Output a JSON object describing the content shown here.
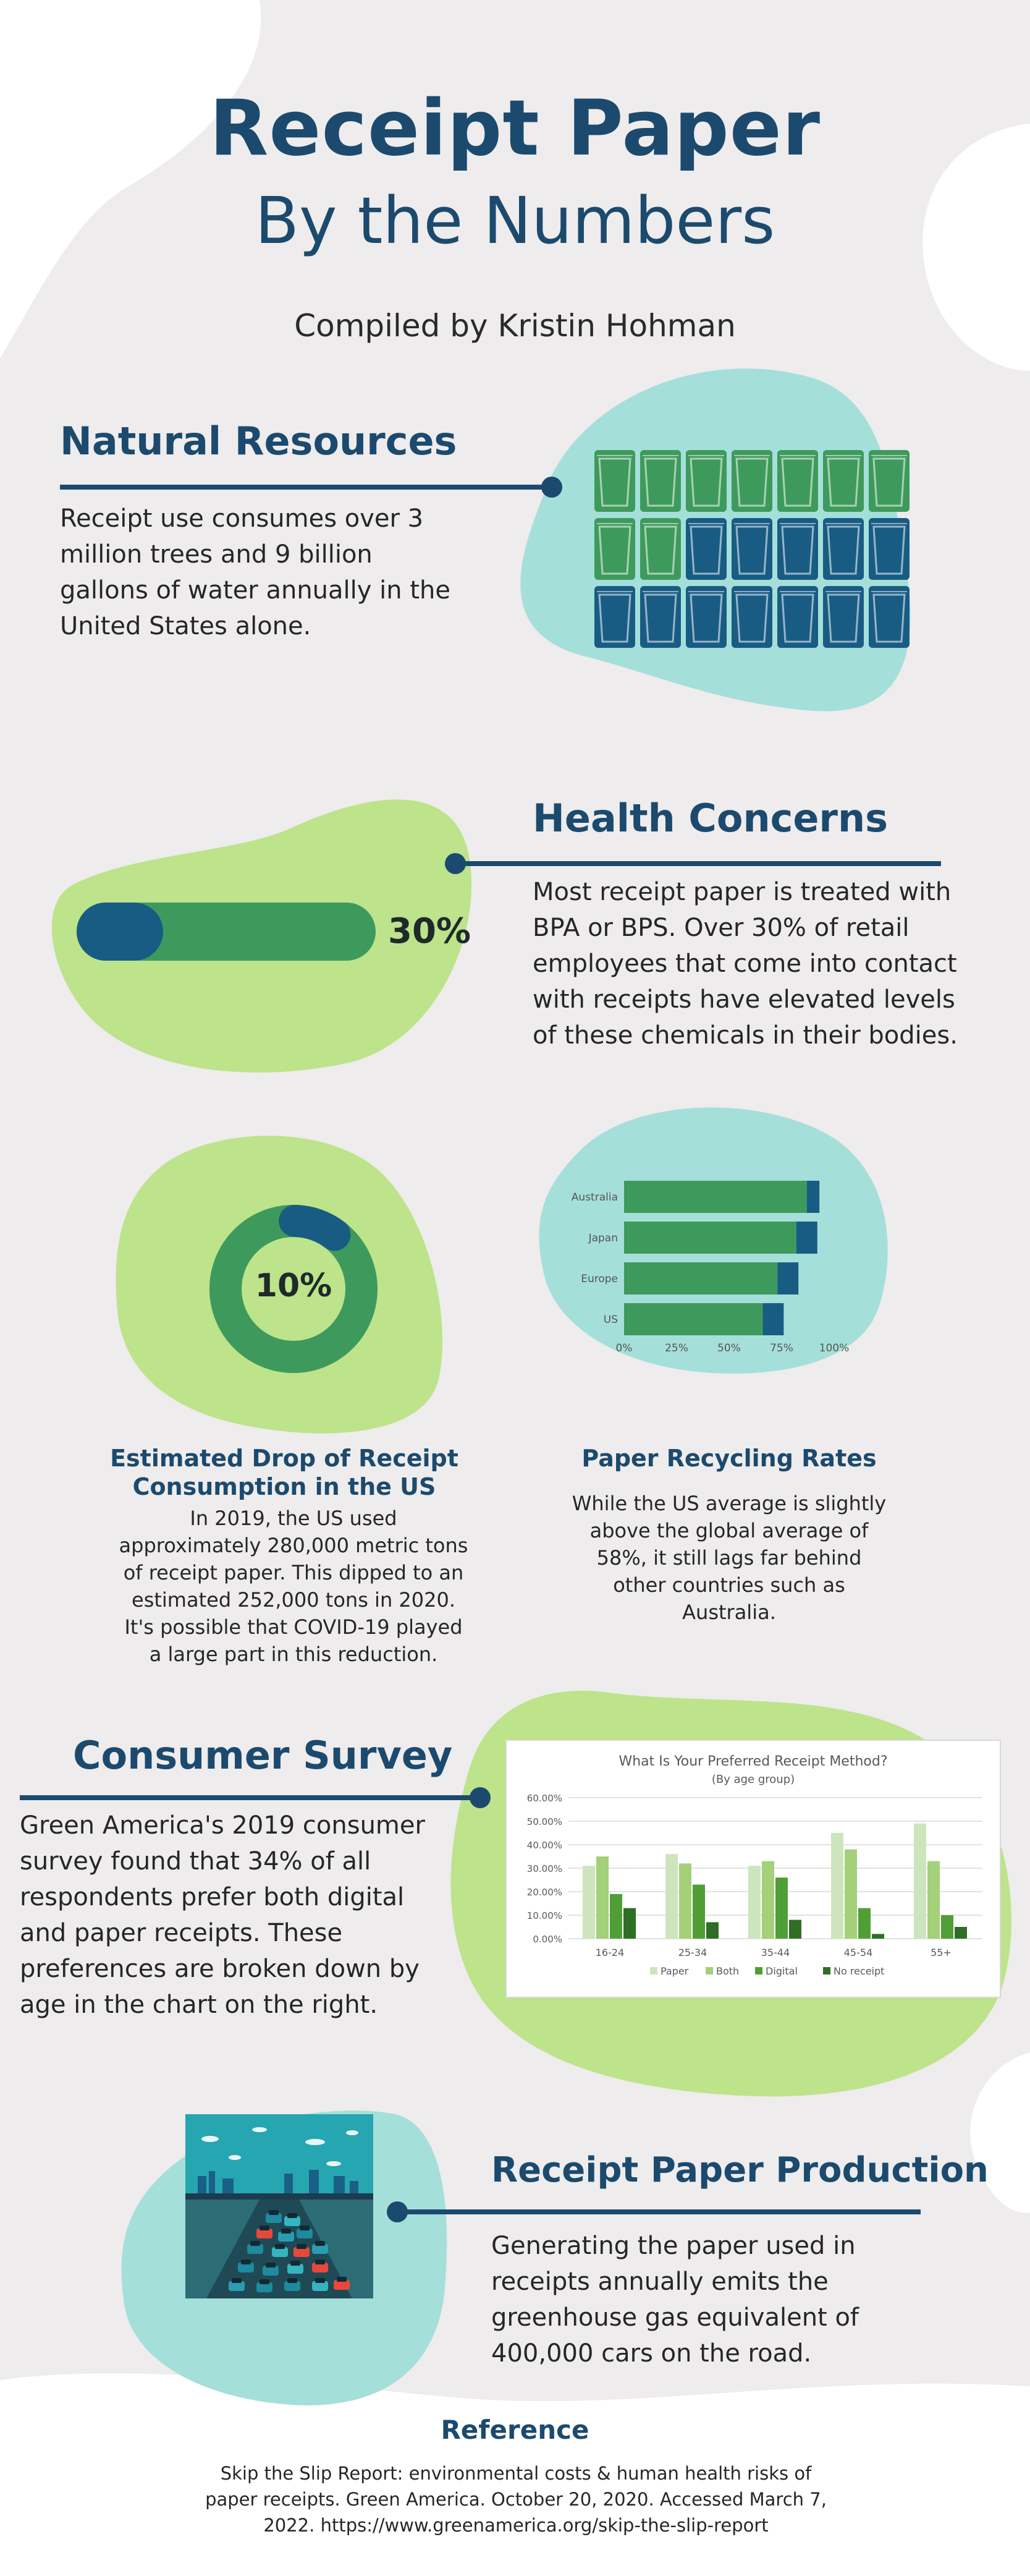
{
  "header": {
    "title": "Receipt Paper",
    "subtitle": "By the Numbers",
    "byline": "Compiled by Kristin Hohman"
  },
  "natural_resources": {
    "heading": "Natural Resources",
    "text": "Receipt use consumes over 3 million trees and 9 billion gallons of water annually in the United States alone.",
    "icon": "water-glass-icon",
    "glasses_total": 21,
    "glasses_green": 9,
    "colors": {
      "green": "#3e9a5c",
      "navy": "#185c84"
    }
  },
  "health": {
    "heading": "Health Concerns",
    "text": "Most receipt paper is treated with BPA or BPS. Over 30% of retail employees that come into contact with receipts have elevated levels of these chemicals in their bodies.",
    "percent_label": "30%",
    "percent_value": 30
  },
  "consumption": {
    "heading": "Estimated Drop of Receipt Consumption in the US",
    "text": "In 2019, the US used approximately 280,000 metric tons of receipt paper. This dipped to an estimated 252,000 tons in 2020. It's possible that COVID-19 played a large part in this reduction.",
    "percent_label": "10%",
    "percent_value": 10
  },
  "recycling": {
    "heading": "Paper Recycling Rates",
    "text": "While the US average is slightly above the global average of 58%, it still lags far behind other countries such as Australia."
  },
  "survey": {
    "heading": "Consumer Survey",
    "text": "Green America's 2019 consumer survey found that 34% of all respondents prefer both digital and paper receipts. These preferences are broken down by age in the chart on the right."
  },
  "production": {
    "heading": "Receipt Paper Production",
    "text": "Generating the paper used in receipts annually emits the greenhouse gas equivalent of 400,000 cars on the road."
  },
  "reference": {
    "heading": "Reference",
    "text": "Skip the Slip Report: environmental costs & human health risks of paper receipts. Green America. October 20, 2020.  Accessed March 7, 2022. https://www.greenamerica.org/skip-the-slip-report"
  },
  "chart_data": [
    {
      "type": "bar",
      "orientation": "horizontal",
      "stacked": true,
      "categories": [
        "Australia",
        "Japan",
        "Europe",
        "US"
      ],
      "series": [
        {
          "values": [
            87,
            82,
            73,
            66
          ],
          "color": "#3e9a5c"
        },
        {
          "values": [
            6,
            10,
            10,
            10
          ],
          "color": "#185c84"
        }
      ],
      "x_ticks": [
        "0%",
        "25%",
        "50%",
        "75%",
        "100%"
      ],
      "xlim": [
        0,
        100
      ],
      "grid": false
    },
    {
      "type": "bar",
      "title": "What Is Your Preferred Receipt Method?",
      "subtitle": "(By age group)",
      "categories": [
        "16-24",
        "25-34",
        "35-44",
        "45-54",
        "55+"
      ],
      "series": [
        {
          "name": "Paper",
          "values": [
            31,
            36,
            31,
            45,
            49
          ],
          "color": "#cde5bd"
        },
        {
          "name": "Both",
          "values": [
            35,
            32,
            33,
            38,
            33
          ],
          "color": "#a3d078"
        },
        {
          "name": "Digital",
          "values": [
            19,
            23,
            26,
            13,
            10
          ],
          "color": "#4f9e36"
        },
        {
          "name": "No receipt",
          "values": [
            13,
            7,
            8,
            2,
            5
          ],
          "color": "#2f6e25"
        }
      ],
      "y_ticks": [
        "0.00%",
        "10.00%",
        "20.00%",
        "30.00%",
        "40.00%",
        "50.00%",
        "60.00%"
      ],
      "ylim": [
        0,
        60
      ],
      "grid": true,
      "legend_position": "bottom"
    }
  ]
}
